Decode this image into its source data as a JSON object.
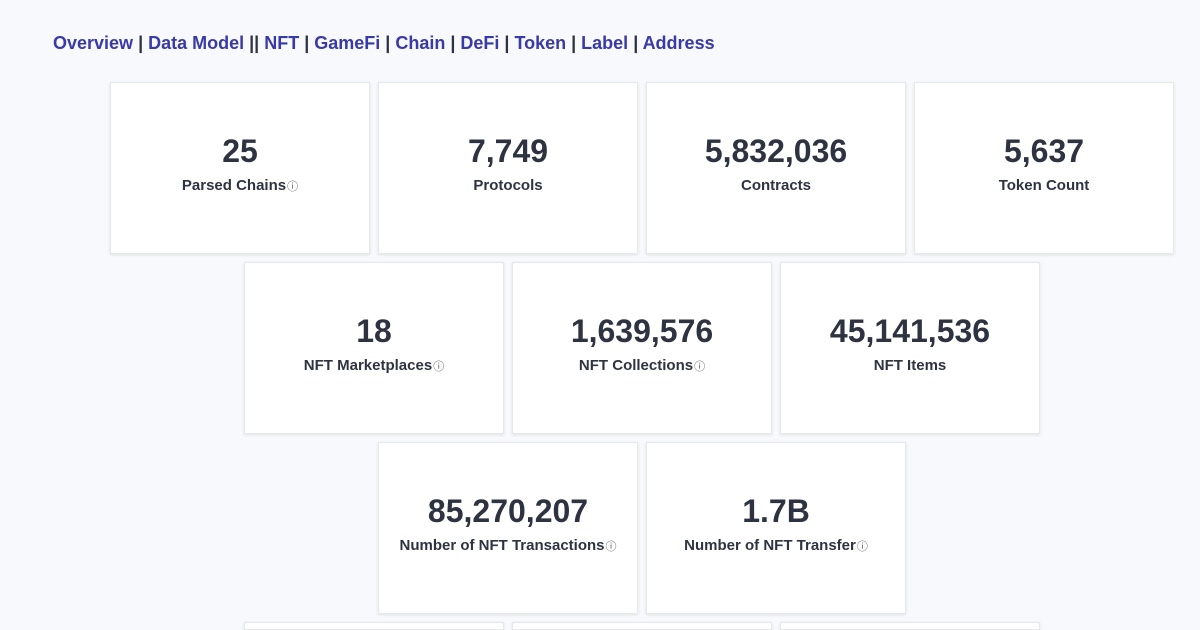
{
  "nav": {
    "items": [
      {
        "label": "Overview",
        "sep": " | "
      },
      {
        "label": "Data Model",
        "sep": " || "
      },
      {
        "label": "NFT",
        "sep": " | "
      },
      {
        "label": "GameFi",
        "sep": " | "
      },
      {
        "label": "Chain",
        "sep": " | "
      },
      {
        "label": "DeFi",
        "sep": " | "
      },
      {
        "label": "Token",
        "sep": " | "
      },
      {
        "label": "Label",
        "sep": " | "
      },
      {
        "label": "Address",
        "sep": ""
      }
    ]
  },
  "stats": [
    {
      "value": "25",
      "label": "Parsed Chains",
      "info": true
    },
    {
      "value": "7,749",
      "label": "Protocols",
      "info": false
    },
    {
      "value": "5,832,036",
      "label": "Contracts",
      "info": false
    },
    {
      "value": "5,637",
      "label": "Token Count",
      "info": false
    },
    {
      "value": "18",
      "label": "NFT Marketplaces",
      "info": true
    },
    {
      "value": "1,639,576",
      "label": "NFT Collections",
      "info": true
    },
    {
      "value": "45,141,536",
      "label": "NFT Items",
      "info": false
    },
    {
      "value": "85,270,207",
      "label": "Number of NFT Transactions",
      "info": true
    },
    {
      "value": "1.7B",
      "label": "Number of NFT Transfer",
      "info": true
    }
  ],
  "info_icon_glyph": "ⓘ"
}
